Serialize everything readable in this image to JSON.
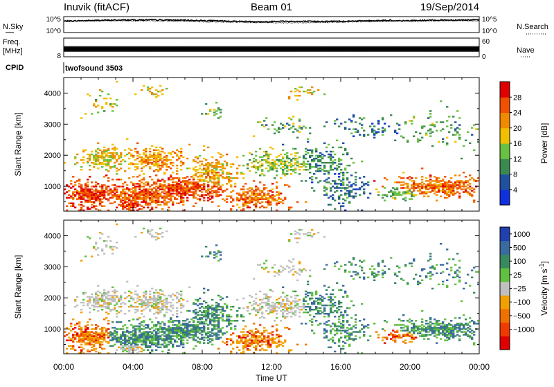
{
  "header": {
    "station": "Inuvik (fitACF)",
    "beam": "Beam 01",
    "date": "19/Sep/2014"
  },
  "left_labels": {
    "nsky": "N.Sky",
    "freq": "Freq.",
    "mhz": "[MHz]",
    "cpid": "CPID"
  },
  "right_labels": {
    "nsearch": "N.Search",
    "nave": "Nave"
  },
  "cpid_text": "twofsound 3503",
  "colors": {
    "power": [
      "#1030e0",
      "#2050a0",
      "#3a8a50",
      "#6ac040",
      "#f0c000",
      "#f08a00",
      "#f05000",
      "#e00000"
    ],
    "velocity_pos": [
      "#2040b0",
      "#3a6aa0",
      "#3a8a60",
      "#60c040"
    ],
    "velocity_gray": "#c0c0c0",
    "velocity_neg": [
      "#f0a000",
      "#f07000",
      "#f03a00",
      "#e00000"
    ]
  },
  "chart_data": [
    {
      "type": "line",
      "panel": "noise",
      "y_ticks": [
        "10^5",
        "10^0"
      ],
      "right_ticks": [
        "10^5",
        "10^0"
      ],
      "ylim": [
        0,
        5
      ],
      "series": [
        {
          "name": "N.Sky",
          "level": 3.6
        },
        {
          "name": "N.Search",
          "level": 3.4
        }
      ]
    },
    {
      "type": "line",
      "panel": "frequency",
      "y_ticks": [
        "8"
      ],
      "right_ticks": [
        "60",
        "0"
      ],
      "ylim": [
        8,
        14
      ],
      "series": [
        {
          "name": "Freq.",
          "level": 10.5
        },
        {
          "name": "Nave",
          "level": 22
        }
      ]
    },
    {
      "type": "heatmap",
      "panel": "power",
      "ylabel": "Slant Range [km]",
      "y_ticks": [
        "1000",
        "2000",
        "3000",
        "4000"
      ],
      "ylim": [
        200,
        4500
      ],
      "colorbar_label": "Power [dB]",
      "colorbar_ticks": [
        "4",
        "8",
        "12",
        "16",
        "20",
        "24",
        "28"
      ],
      "clim": [
        0,
        32
      ]
    },
    {
      "type": "heatmap",
      "panel": "velocity",
      "ylabel": "Slant Range [km]",
      "y_ticks": [
        "1000",
        "2000",
        "3000",
        "4000"
      ],
      "ylim": [
        200,
        4500
      ],
      "colorbar_label": "Velocity [m s",
      "colorbar_unit_sup": "-1",
      "colorbar_unit_close": "]",
      "colorbar_ticks": [
        "1000",
        "500",
        "100",
        "25",
        "−25",
        "−100",
        "−500",
        "−1000"
      ]
    },
    {
      "type": "axis",
      "xlabel": "Time UT",
      "x_ticks": [
        "00:00",
        "04:00",
        "08:00",
        "12:00",
        "16:00",
        "20:00",
        "00:00"
      ],
      "xlim_hours": [
        0,
        24
      ]
    }
  ]
}
